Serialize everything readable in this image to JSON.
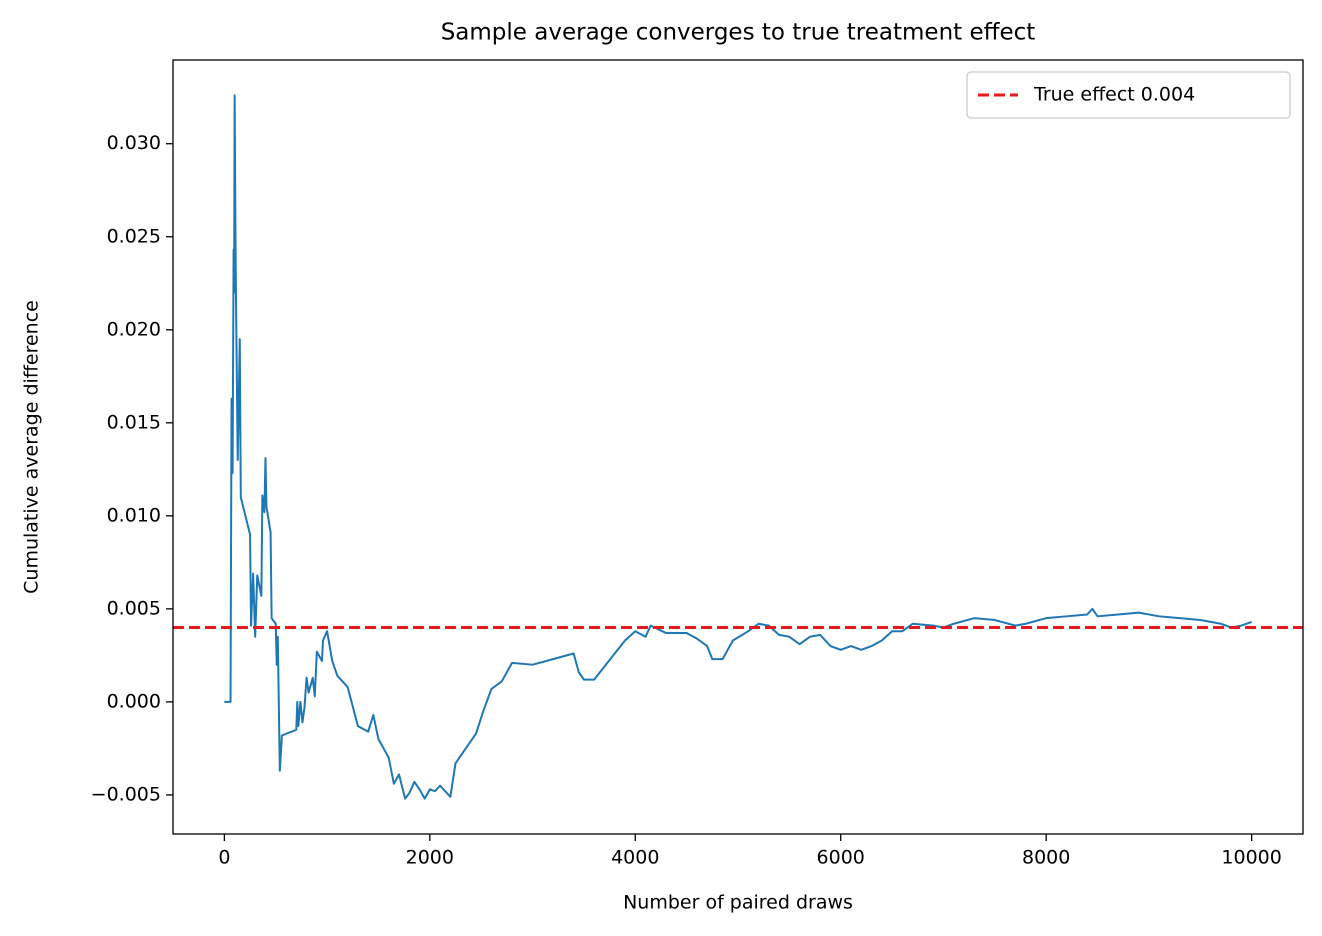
{
  "chart_data": {
    "type": "line",
    "title": "Sample average converges to true treatment effect",
    "x_label": "Number of paired draws",
    "y_label": "Cumulative average difference",
    "x": [
      0,
      50,
      60,
      70,
      80,
      90,
      95,
      100,
      110,
      130,
      150,
      160,
      250,
      260,
      280,
      300,
      320,
      360,
      370,
      390,
      400,
      410,
      450,
      460,
      500,
      510,
      520,
      540,
      560,
      700,
      710,
      720,
      740,
      760,
      780,
      800,
      820,
      860,
      880,
      900,
      950,
      960,
      1000,
      1050,
      1100,
      1200,
      1300,
      1400,
      1450,
      1500,
      1600,
      1650,
      1700,
      1760,
      1800,
      1850,
      1900,
      1950,
      2000,
      2050,
      2100,
      2200,
      2250,
      2350,
      2450,
      2520,
      2600,
      2700,
      2800,
      3000,
      3200,
      3400,
      3450,
      3500,
      3600,
      3700,
      3800,
      3900,
      4000,
      4100,
      4150,
      4300,
      4500,
      4600,
      4700,
      4750,
      4850,
      4950,
      5100,
      5200,
      5300,
      5400,
      5500,
      5600,
      5700,
      5800,
      5900,
      6000,
      6100,
      6200,
      6300,
      6400,
      6500,
      6600,
      6700,
      6900,
      7000,
      7100,
      7300,
      7500,
      7700,
      7800,
      8000,
      8200,
      8400,
      8450,
      8500,
      8700,
      8900,
      9100,
      9300,
      9500,
      9700,
      9800,
      9900,
      10000
    ],
    "series": [
      {
        "name": "Cumulative average difference",
        "color": "#1f77b4",
        "values": [
          0,
          0,
          0,
          0.0163,
          0.0123,
          0.0243,
          0.022,
          0.0326,
          0.0235,
          0.013,
          0.0195,
          0.011,
          0.009,
          0.0041,
          0.0069,
          0.0035,
          0.0068,
          0.0057,
          0.0111,
          0.0102,
          0.0131,
          0.0105,
          0.0091,
          0.0045,
          0.0042,
          0.002,
          0.0035,
          -0.0037,
          -0.0018,
          -0.0015,
          0,
          -0.0013,
          0,
          -0.0011,
          -0.0003,
          0.0013,
          0.0005,
          0.0013,
          0.0003,
          0.0027,
          0.0022,
          0.0033,
          0.0038,
          0.0022,
          0.0014,
          0.0008,
          -0.0013,
          -0.0016,
          -0.0007,
          -0.002,
          -0.003,
          -0.0044,
          -0.0039,
          -0.0052,
          -0.0049,
          -0.0043,
          -0.0047,
          -0.0052,
          -0.0047,
          -0.0048,
          -0.0045,
          -0.0051,
          -0.0033,
          -0.0025,
          -0.0017,
          -0.0005,
          0.0007,
          0.0011,
          0.0021,
          0.002,
          0.0023,
          0.0026,
          0.0016,
          0.0012,
          0.0012,
          0.0019,
          0.0026,
          0.0033,
          0.0038,
          0.0035,
          0.0041,
          0.0037,
          0.0037,
          0.0034,
          0.003,
          0.0023,
          0.0023,
          0.0033,
          0.0038,
          0.0042,
          0.0041,
          0.0036,
          0.0035,
          0.0031,
          0.0035,
          0.0036,
          0.003,
          0.0028,
          0.003,
          0.0028,
          0.003,
          0.0033,
          0.0038,
          0.0038,
          0.0042,
          0.0041,
          0.004,
          0.0042,
          0.0045,
          0.0044,
          0.0041,
          0.0042,
          0.0045,
          0.0046,
          0.0047,
          0.005,
          0.0046,
          0.0047,
          0.0048,
          0.0046,
          0.0045,
          0.0044,
          0.0042,
          0.004,
          0.0041,
          0.0043
        ]
      }
    ],
    "reference_line": {
      "name": "True effect 0.004",
      "value": 0.004,
      "color": "#e41a1c",
      "style": "dashed"
    },
    "xlim": [
      -500,
      10500
    ],
    "ylim": [
      -0.0071,
      0.0345
    ],
    "xticks": [
      0,
      2000,
      4000,
      6000,
      8000,
      10000
    ],
    "yticks": [
      {
        "value": -0.005,
        "label": "−0.005"
      },
      {
        "value": 0,
        "label": "0.000"
      },
      0.005,
      {
        "value": 0.01,
        "label": "0.010"
      },
      0.015,
      {
        "value": 0.02,
        "label": "0.020"
      },
      0.025,
      {
        "value": 0.03,
        "label": "0.030"
      }
    ],
    "legend": "upper right",
    "grid": false
  }
}
